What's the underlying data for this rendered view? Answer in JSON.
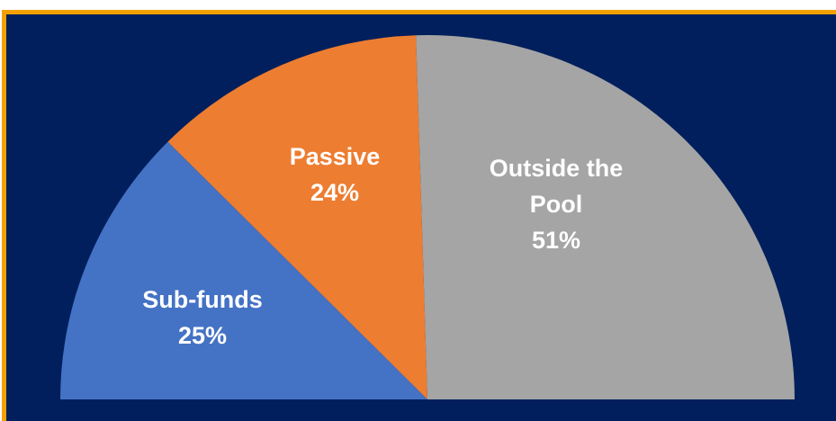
{
  "chart_data": {
    "type": "pie",
    "variant": "semi-circle",
    "slices": [
      {
        "label": "Sub-funds",
        "value": 25,
        "value_label": "25%",
        "color": "#4472c4"
      },
      {
        "label": "Passive",
        "value": 24,
        "value_label": "24%",
        "color": "#ed7d31"
      },
      {
        "label": "Outside the Pool",
        "value": 51,
        "value_label": "51%",
        "color": "#a5a5a5"
      }
    ],
    "title": "",
    "legend": "none",
    "data_labels": "inside"
  },
  "colors": {
    "background": "#001f5c",
    "border": "#f5a000",
    "label_text": "#ffffff"
  }
}
